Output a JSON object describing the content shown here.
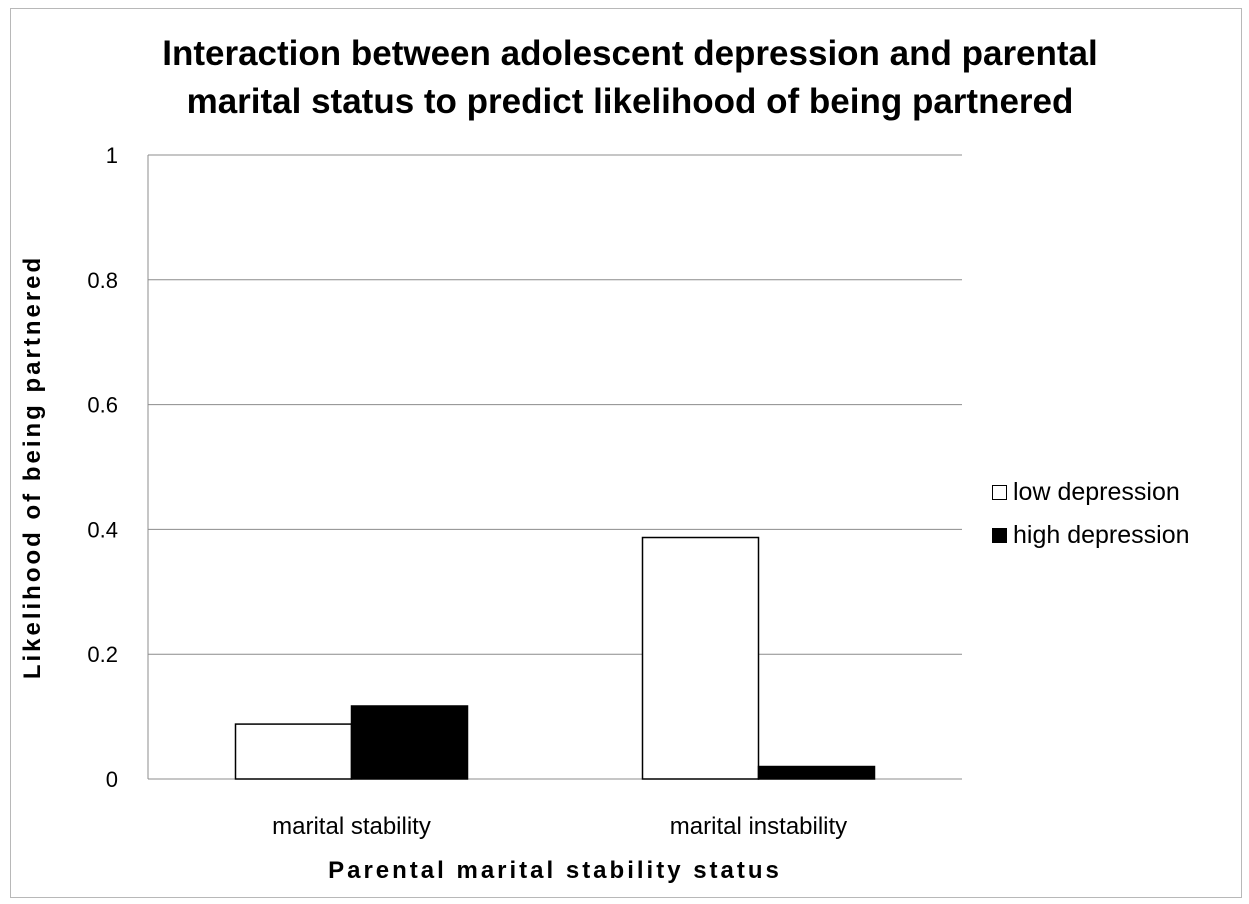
{
  "chart_data": {
    "type": "bar",
    "title_lines": [
      "Interaction between adolescent depression and parental",
      "marital status to predict likelihood of being partnered"
    ],
    "xlabel": "Parental marital stability status",
    "ylabel": "Likelihood of being partnered",
    "categories": [
      "marital stability",
      "marital instability"
    ],
    "series": [
      {
        "name": "low depression",
        "color": "#ffffff",
        "values": [
          0.088,
          0.387
        ]
      },
      {
        "name": "high depression",
        "color": "#000000",
        "values": [
          0.117,
          0.02
        ]
      }
    ],
    "ylim": [
      0,
      1
    ],
    "yticks": [
      "0",
      "0.2",
      "0.4",
      "0.6",
      "0.8",
      "1"
    ],
    "grid": true,
    "legend_position": "right"
  }
}
